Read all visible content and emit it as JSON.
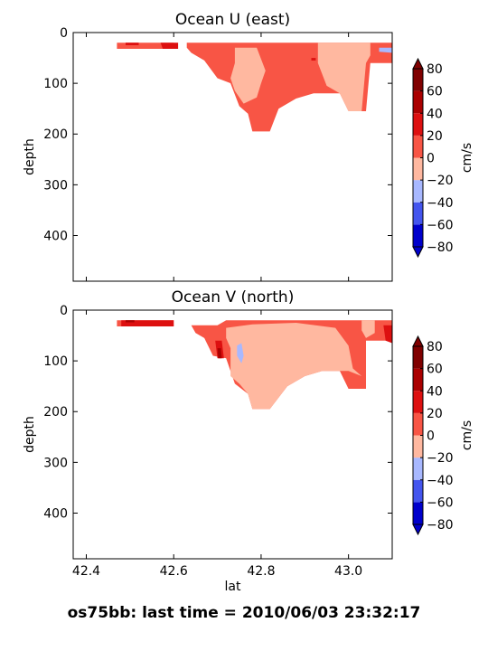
{
  "footer": "os75bb: last time = 2010/06/03 23:32:17",
  "chart_data": [
    {
      "type": "heatmap",
      "title": "Ocean U (east)",
      "ylabel": "depth",
      "xlabel": "",
      "xlim": [
        42.37,
        43.1
      ],
      "ylim": [
        490,
        0
      ],
      "xticks": [
        42.4,
        42.6,
        42.8,
        43.0
      ],
      "xtick_labels": [],
      "yticks": [
        0,
        100,
        200,
        300,
        400
      ],
      "ytick_labels": [
        "0",
        "100",
        "200",
        "300",
        "400"
      ],
      "colorbar": {
        "label": "cm/s",
        "ticks": [
          -80,
          -60,
          -40,
          -20,
          0,
          20,
          40,
          60,
          80
        ],
        "tick_labels": [
          "−80",
          "−60",
          "−40",
          "−20",
          "0",
          "20",
          "40",
          "60",
          "80"
        ],
        "levels": [
          -80,
          -60,
          -40,
          -20,
          0,
          20,
          40,
          60,
          80
        ],
        "colors": [
          "#0000cc",
          "#4455ee",
          "#a8b8ff",
          "#ffb8a0",
          "#f85545",
          "#dd1010",
          "#aa0000",
          "#800000"
        ],
        "extend": "both"
      },
      "regions": [
        {
          "level": 0,
          "points": [
            [
              42.47,
              20
            ],
            [
              42.6,
              20
            ],
            [
              42.6,
              32
            ],
            [
              42.47,
              32
            ]
          ]
        },
        {
          "level": 20,
          "points": [
            [
              42.49,
              20
            ],
            [
              42.52,
              20
            ],
            [
              42.52,
              25
            ],
            [
              42.49,
              25
            ]
          ]
        },
        {
          "level": 20,
          "points": [
            [
              42.57,
              20
            ],
            [
              42.61,
              20
            ],
            [
              42.61,
              32
            ],
            [
              42.575,
              32
            ]
          ]
        },
        {
          "level": 0,
          "points": [
            [
              42.63,
              20
            ],
            [
              43.1,
              20
            ],
            [
              43.1,
              60
            ],
            [
              43.05,
              60
            ],
            [
              43.04,
              155
            ],
            [
              43.0,
              155
            ],
            [
              42.98,
              120
            ],
            [
              42.92,
              120
            ],
            [
              42.88,
              130
            ],
            [
              42.84,
              150
            ],
            [
              42.82,
              195
            ],
            [
              42.78,
              195
            ],
            [
              42.77,
              160
            ],
            [
              42.75,
              145
            ],
            [
              42.73,
              100
            ],
            [
              42.7,
              90
            ],
            [
              42.67,
              55
            ],
            [
              42.64,
              40
            ],
            [
              42.63,
              30
            ]
          ]
        },
        {
          "level": -20,
          "points": [
            [
              42.74,
              30
            ],
            [
              42.79,
              30
            ],
            [
              42.81,
              75
            ],
            [
              42.8,
              100
            ],
            [
              42.79,
              128
            ],
            [
              42.76,
              140
            ],
            [
              42.74,
              115
            ],
            [
              42.73,
              90
            ],
            [
              42.74,
              60
            ]
          ]
        },
        {
          "level": -20,
          "points": [
            [
              42.93,
              20
            ],
            [
              43.05,
              20
            ],
            [
              43.05,
              45
            ],
            [
              43.04,
              60
            ],
            [
              43.03,
              155
            ],
            [
              43.0,
              155
            ],
            [
              42.98,
              120
            ],
            [
              42.95,
              105
            ],
            [
              42.93,
              60
            ]
          ]
        },
        {
          "level": -40,
          "points": [
            [
              43.07,
              30
            ],
            [
              43.1,
              30
            ],
            [
              43.1,
              40
            ],
            [
              43.07,
              38
            ]
          ]
        },
        {
          "level": 20,
          "points": [
            [
              42.915,
              50
            ],
            [
              42.925,
              50
            ],
            [
              42.925,
              55
            ],
            [
              42.915,
              55
            ]
          ]
        }
      ]
    },
    {
      "type": "heatmap",
      "title": "Ocean V (north)",
      "ylabel": "depth",
      "xlabel": "lat",
      "xlim": [
        42.37,
        43.1
      ],
      "ylim": [
        490,
        0
      ],
      "xticks": [
        42.4,
        42.6,
        42.8,
        43.0
      ],
      "xtick_labels": [
        "42.4",
        "42.6",
        "42.8",
        "43.0"
      ],
      "yticks": [
        0,
        100,
        200,
        300,
        400
      ],
      "ytick_labels": [
        "0",
        "100",
        "200",
        "300",
        "400"
      ],
      "colorbar": {
        "label": "cm/s",
        "ticks": [
          -80,
          -60,
          -40,
          -20,
          0,
          20,
          40,
          60,
          80
        ],
        "tick_labels": [
          "−80",
          "−60",
          "−40",
          "−20",
          "0",
          "20",
          "40",
          "60",
          "80"
        ],
        "levels": [
          -80,
          -60,
          -40,
          -20,
          0,
          20,
          40,
          60,
          80
        ],
        "colors": [
          "#0000cc",
          "#4455ee",
          "#a8b8ff",
          "#ffb8a0",
          "#f85545",
          "#dd1010",
          "#aa0000",
          "#800000"
        ],
        "extend": "both"
      },
      "regions": [
        {
          "level": 0,
          "points": [
            [
              42.47,
              20
            ],
            [
              42.6,
              20
            ],
            [
              42.6,
              32
            ],
            [
              42.47,
              32
            ]
          ]
        },
        {
          "level": 20,
          "points": [
            [
              42.48,
              20
            ],
            [
              42.6,
              20
            ],
            [
              42.6,
              32
            ],
            [
              42.48,
              32
            ]
          ]
        },
        {
          "level": 40,
          "points": [
            [
              42.49,
              20
            ],
            [
              42.51,
              20
            ],
            [
              42.51,
              24
            ],
            [
              42.49,
              24
            ]
          ]
        },
        {
          "level": 0,
          "points": [
            [
              42.64,
              30
            ],
            [
              42.7,
              30
            ],
            [
              42.72,
              20
            ],
            [
              43.1,
              20
            ],
            [
              43.1,
              60
            ],
            [
              43.04,
              60
            ],
            [
              43.04,
              155
            ],
            [
              43.0,
              155
            ],
            [
              42.98,
              120
            ],
            [
              42.94,
              120
            ],
            [
              42.9,
              130
            ],
            [
              42.86,
              150
            ],
            [
              42.82,
              195
            ],
            [
              42.78,
              195
            ],
            [
              42.77,
              165
            ],
            [
              42.74,
              145
            ],
            [
              42.72,
              95
            ],
            [
              42.69,
              90
            ],
            [
              42.67,
              55
            ],
            [
              42.65,
              45
            ]
          ]
        },
        {
          "level": -20,
          "points": [
            [
              42.72,
              35
            ],
            [
              42.78,
              28
            ],
            [
              42.88,
              25
            ],
            [
              42.97,
              35
            ],
            [
              43.0,
              70
            ],
            [
              43.01,
              115
            ],
            [
              43.03,
              130
            ],
            [
              43.0,
              120
            ],
            [
              42.94,
              120
            ],
            [
              42.9,
              130
            ],
            [
              42.86,
              150
            ],
            [
              42.82,
              195
            ],
            [
              42.78,
              195
            ],
            [
              42.77,
              165
            ],
            [
              42.75,
              145
            ],
            [
              42.73,
              130
            ],
            [
              42.73,
              75
            ],
            [
              42.72,
              55
            ]
          ]
        },
        {
          "level": -20,
          "points": [
            [
              43.03,
              20
            ],
            [
              43.06,
              20
            ],
            [
              43.06,
              45
            ],
            [
              43.04,
              55
            ],
            [
              43.03,
              40
            ]
          ]
        },
        {
          "level": -40,
          "points": [
            [
              42.745,
              70
            ],
            [
              42.755,
              65
            ],
            [
              42.76,
              90
            ],
            [
              42.755,
              105
            ],
            [
              42.745,
              90
            ]
          ]
        },
        {
          "level": 20,
          "points": [
            [
              42.695,
              60
            ],
            [
              42.71,
              60
            ],
            [
              42.715,
              95
            ],
            [
              42.7,
              95
            ]
          ]
        },
        {
          "level": 40,
          "points": [
            [
              42.7,
              75
            ],
            [
              42.708,
              75
            ],
            [
              42.71,
              95
            ],
            [
              42.702,
              95
            ]
          ]
        },
        {
          "level": 20,
          "points": [
            [
              43.08,
              30
            ],
            [
              43.1,
              30
            ],
            [
              43.1,
              65
            ],
            [
              43.085,
              60
            ]
          ]
        }
      ]
    }
  ]
}
